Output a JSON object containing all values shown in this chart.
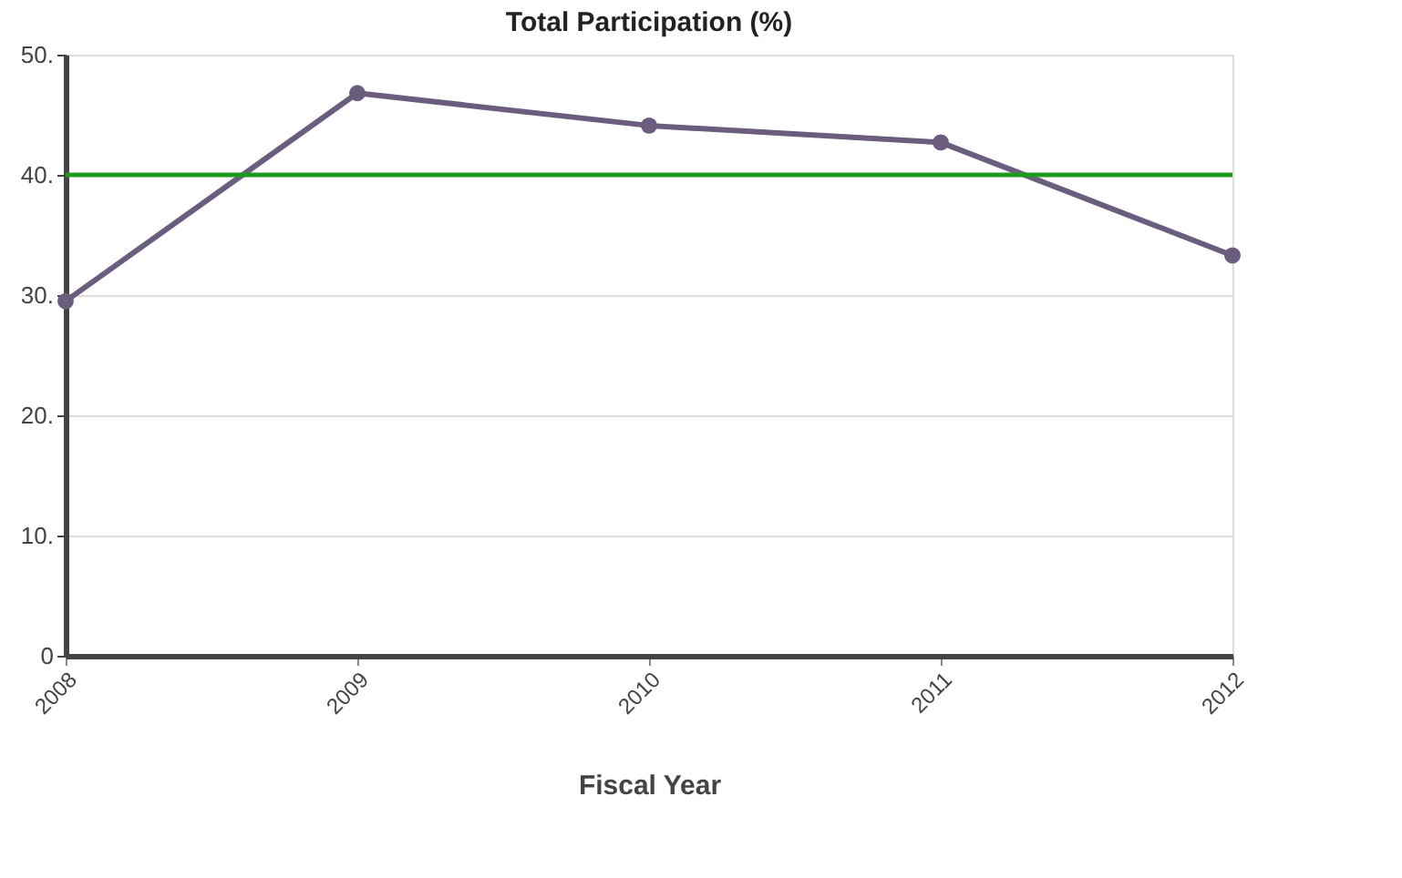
{
  "chart_data": {
    "type": "line",
    "title": "Total Participation (%)",
    "xlabel": "Fiscal Year",
    "categories": [
      "2008",
      "2009",
      "2010",
      "2011",
      "2012"
    ],
    "series": [
      {
        "color": "#6b5d7e",
        "values": [
          29.5,
          46.8,
          44.1,
          42.7,
          33.3
        ]
      }
    ],
    "ylim": [
      0,
      50
    ],
    "yticks": [
      0,
      {
        "value": 10,
        "label": "10."
      },
      {
        "value": 20,
        "label": "20."
      },
      {
        "value": 30,
        "label": "30."
      },
      {
        "value": 40,
        "label": "40."
      },
      {
        "value": 50,
        "label": "50."
      }
    ],
    "ref_lines": [
      {
        "axis": "y",
        "value": 40,
        "color": "#1f9a1f",
        "line_style": "solid"
      }
    ],
    "grid": "y",
    "marker": "circle",
    "line_style": "solid"
  }
}
